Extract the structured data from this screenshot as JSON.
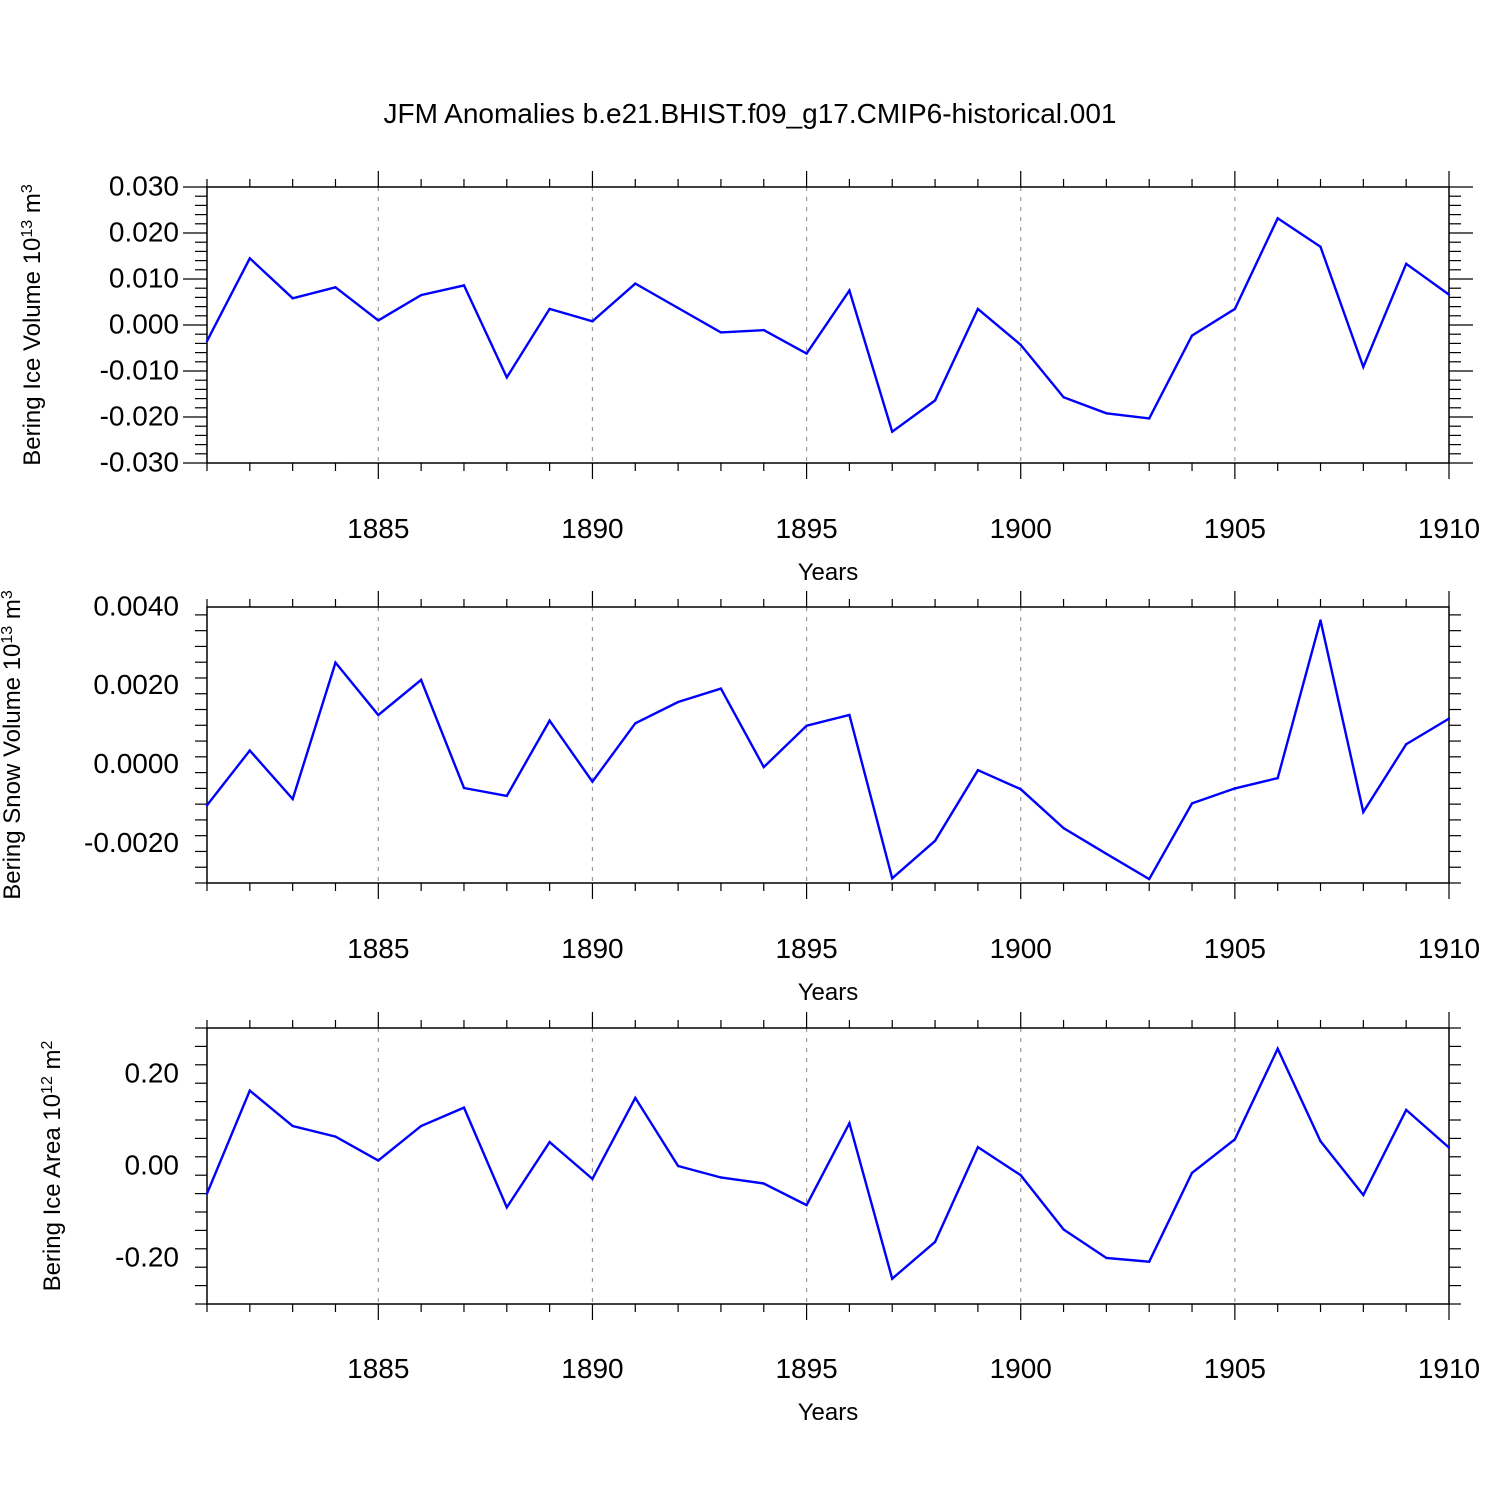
{
  "title": "JFM Anomalies b.e21.BHIST.f09_g17.CMIP6-historical.001",
  "colors": {
    "series": "#0000ff",
    "axis": "#000000",
    "grid": "#999999"
  },
  "chart_data": [
    {
      "type": "line",
      "ylabel": "Bering Ice Volume 10",
      "ylabel_exp": "13",
      "ylabel_unit": " m",
      "ylabel_unit_exp": "3",
      "xlabel": "Years",
      "xlim": [
        1881,
        1910
      ],
      "ylim": [
        -0.03,
        0.03
      ],
      "x_ticks": [
        "1885",
        "1890",
        "1895",
        "1900",
        "1905",
        "1910"
      ],
      "y_ticks": [
        "0.030",
        "0.020",
        "0.010",
        "0.000",
        "-0.010",
        "-0.020",
        "-0.030"
      ],
      "y_tick_values": [
        0.03,
        0.02,
        0.01,
        0.0,
        -0.01,
        -0.02,
        -0.03
      ],
      "grid_x": [
        1885,
        1890,
        1895,
        1900,
        1905
      ],
      "x": [
        1881,
        1882,
        1883,
        1884,
        1885,
        1886,
        1887,
        1888,
        1889,
        1890,
        1891,
        1892,
        1893,
        1894,
        1895,
        1896,
        1897,
        1898,
        1899,
        1900,
        1901,
        1902,
        1903,
        1904,
        1905,
        1906,
        1907,
        1908,
        1909,
        1910
      ],
      "values": [
        -0.0035,
        0.0145,
        0.0058,
        0.0082,
        0.001,
        0.0065,
        0.0086,
        -0.0114,
        0.0035,
        0.0008,
        0.009,
        0.0037,
        -0.0016,
        -0.0011,
        -0.0062,
        0.0075,
        -0.0232,
        -0.0164,
        0.0035,
        -0.0043,
        -0.0157,
        -0.0192,
        -0.0203,
        -0.0023,
        0.0035,
        0.0232,
        0.017,
        -0.0091,
        0.0133,
        0.0066
      ]
    },
    {
      "type": "line",
      "ylabel": "Bering Snow Volume 10",
      "ylabel_exp": "13",
      "ylabel_unit": " m",
      "ylabel_unit_exp": "3",
      "xlabel": "Years",
      "xlim": [
        1881,
        1910
      ],
      "ylim": [
        -0.003,
        0.004
      ],
      "x_ticks": [
        "1885",
        "1890",
        "1895",
        "1900",
        "1905",
        "1910"
      ],
      "y_ticks": [
        "0.0040",
        "0.0020",
        "0.0000",
        "-0.0020"
      ],
      "y_tick_values": [
        0.004,
        0.002,
        0.0,
        -0.002
      ],
      "grid_x": [
        1885,
        1890,
        1895,
        1900,
        1905
      ],
      "x": [
        1881,
        1882,
        1883,
        1884,
        1885,
        1886,
        1887,
        1888,
        1889,
        1890,
        1891,
        1892,
        1893,
        1894,
        1895,
        1896,
        1897,
        1898,
        1899,
        1900,
        1901,
        1902,
        1903,
        1904,
        1905,
        1906,
        1907,
        1908,
        1909,
        1910
      ],
      "values": [
        -0.00103,
        0.00036,
        -0.00087,
        0.00259,
        0.00126,
        0.00215,
        -0.00059,
        -0.00079,
        0.00112,
        -0.00043,
        0.00105,
        0.00159,
        0.00193,
        -6e-05,
        0.00099,
        0.00126,
        -0.00288,
        -0.00193,
        -0.00014,
        -0.00062,
        -0.00161,
        -0.00226,
        -0.0029,
        -0.00098,
        -0.0006,
        -0.00034,
        0.00366,
        -0.0012,
        0.00052,
        0.00117
      ]
    },
    {
      "type": "line",
      "ylabel": "Bering Ice Area 10",
      "ylabel_exp": "12",
      "ylabel_unit": " m",
      "ylabel_unit_exp": "2",
      "xlabel": "Years",
      "xlim": [
        1881,
        1910
      ],
      "ylim": [
        -0.3,
        0.3
      ],
      "x_ticks": [
        "1885",
        "1890",
        "1895",
        "1900",
        "1905",
        "1910"
      ],
      "y_ticks": [
        "0.20",
        "0.00",
        "-0.20"
      ],
      "y_tick_values": [
        0.2,
        0.0,
        -0.2
      ],
      "grid_x": [
        1885,
        1890,
        1895,
        1900,
        1905
      ],
      "x": [
        1881,
        1882,
        1883,
        1884,
        1885,
        1886,
        1887,
        1888,
        1889,
        1890,
        1891,
        1892,
        1893,
        1894,
        1895,
        1896,
        1897,
        1898,
        1899,
        1900,
        1901,
        1902,
        1903,
        1904,
        1905,
        1906,
        1907,
        1908,
        1909,
        1910
      ],
      "values": [
        -0.06,
        0.164,
        0.087,
        0.064,
        0.012,
        0.087,
        0.127,
        -0.09,
        0.052,
        -0.028,
        0.148,
        0.0,
        -0.025,
        -0.038,
        -0.085,
        0.093,
        -0.245,
        -0.165,
        0.041,
        -0.02,
        -0.138,
        -0.2,
        -0.208,
        -0.015,
        0.058,
        0.255,
        0.054,
        -0.063,
        0.122,
        0.04
      ]
    }
  ]
}
